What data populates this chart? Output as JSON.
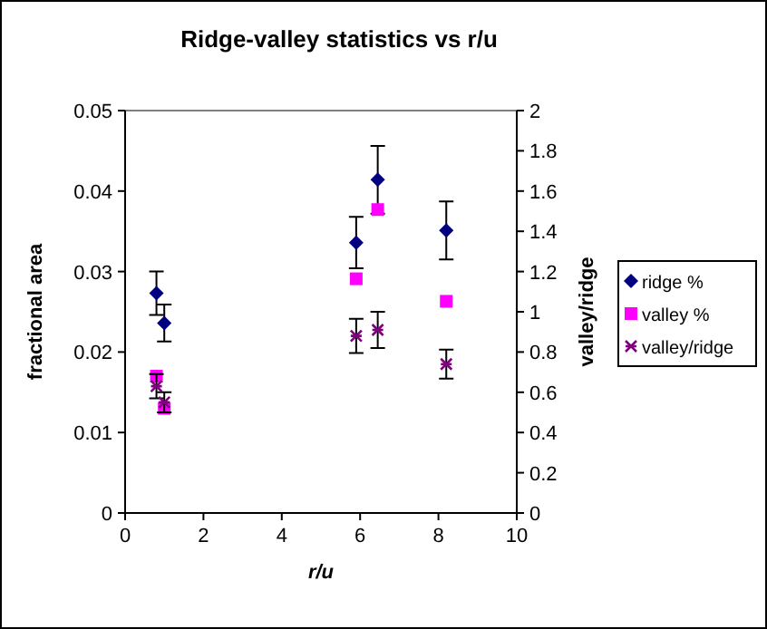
{
  "chart_data": {
    "type": "scatter",
    "title": "Ridge-valley statistics vs r/u",
    "xlabel": "r/u",
    "ylabel": "fractional area",
    "y2label": "valley/ridge",
    "x": [
      0.8,
      1.0,
      5.9,
      6.45,
      8.2
    ],
    "series": [
      {
        "name": "ridge %",
        "color": "#000080",
        "marker": "diamond",
        "values": [
          0.0273,
          0.0236,
          0.0336,
          0.0414,
          0.0351
        ],
        "errors": [
          0.0027,
          0.0023,
          0.0032,
          0.0042,
          0.0036
        ]
      },
      {
        "name": "valley %",
        "color": "#ff00ff",
        "marker": "square",
        "values": [
          0.017,
          0.013,
          0.0291,
          0.0377,
          0.0263
        ]
      },
      {
        "name": "valley/ridge",
        "color": "#800080",
        "marker": "cross",
        "axis": "y2",
        "values": [
          0.63,
          0.55,
          0.88,
          0.91,
          0.74
        ],
        "errors": [
          0.06,
          0.05,
          0.085,
          0.09,
          0.072
        ]
      }
    ],
    "xlim": [
      0,
      10
    ],
    "xticks": [
      0,
      2,
      4,
      6,
      8,
      10
    ],
    "ylim": [
      0,
      0.05
    ],
    "yticks": [
      0,
      0.01,
      0.02,
      0.03,
      0.04,
      0.05
    ],
    "y2lim": [
      0,
      2
    ],
    "y2ticks": [
      0,
      0.2,
      0.4,
      0.6,
      0.8,
      1,
      1.2,
      1.4,
      1.6,
      1.8,
      2
    ],
    "legend": "right",
    "grid": false
  }
}
